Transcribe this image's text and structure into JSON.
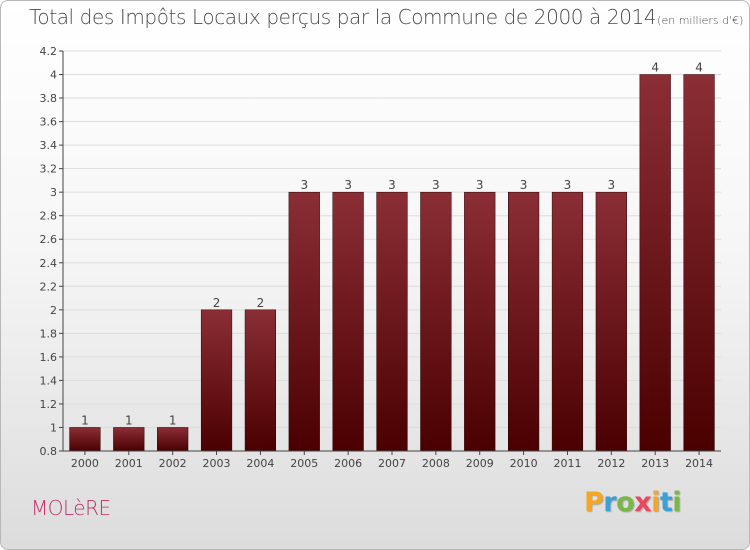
{
  "header": {
    "title": "Total des Impôts Locaux perçus par la Commune de 2000 à 2014",
    "subtitle": "(en milliers d'€)"
  },
  "footer": {
    "commune": "MOLèRE",
    "brand_letters": [
      "P",
      "r",
      "o",
      "x",
      "i",
      "t",
      "i"
    ],
    "brand_colors": [
      "#f5a623",
      "#3aa0d8",
      "#7ab648",
      "#e8475f",
      "#f5a623",
      "#3aa0d8",
      "#7ab648"
    ]
  },
  "colors": {
    "bar_top": "#8b2e36",
    "bar_bottom": "#4a0000",
    "axis": "#444444",
    "grid": "#dddddd",
    "label": "#444444"
  },
  "chart_data": {
    "type": "bar",
    "categories": [
      "2000",
      "2001",
      "2002",
      "2003",
      "2004",
      "2005",
      "2006",
      "2007",
      "2008",
      "2009",
      "2010",
      "2011",
      "2012",
      "2013",
      "2014"
    ],
    "values": [
      1,
      1,
      1,
      2,
      2,
      3,
      3,
      3,
      3,
      3,
      3,
      3,
      3,
      4,
      4
    ],
    "data_labels": [
      "1",
      "1",
      "1",
      "2",
      "2",
      "3",
      "3",
      "3",
      "3",
      "3",
      "3",
      "3",
      "3",
      "4",
      "4"
    ],
    "ylim": [
      0.8,
      4.2
    ],
    "ytick_values": [
      0.8,
      1,
      1.2,
      1.4,
      1.6,
      1.8,
      2,
      2.2,
      2.4,
      2.6,
      2.8,
      3,
      3.2,
      3.4,
      3.6,
      3.8,
      4,
      4.2
    ],
    "ytick_labels": [
      "0.8",
      "1",
      "1.2",
      "1.4",
      "1.6",
      "1.8",
      "2",
      "2.2",
      "2.4",
      "2.6",
      "2.8",
      "3",
      "3.2",
      "3.4",
      "3.6",
      "3.8",
      "4",
      "4.2"
    ],
    "grid": true,
    "legend": "none"
  }
}
